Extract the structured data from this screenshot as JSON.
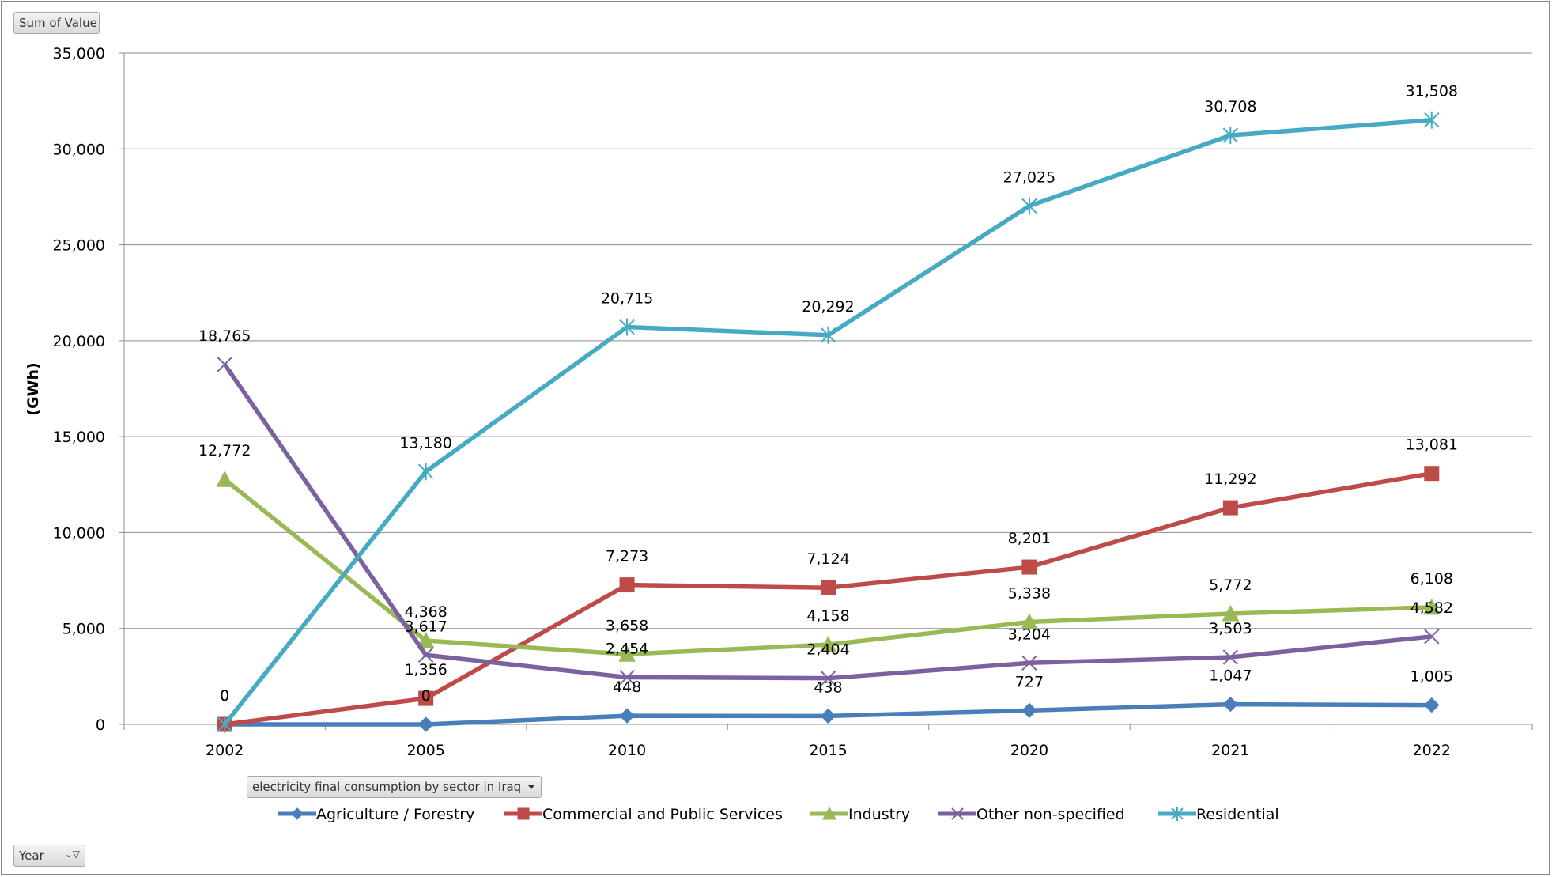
{
  "pivot": {
    "value_field": "Sum of Value",
    "filter_field": "electricity final consumption by sector in Iraq",
    "axis_field": "Year"
  },
  "chart_data": {
    "type": "line",
    "title": "",
    "xlabel": "",
    "ylabel": "(GWh)",
    "ylim": [
      0,
      35000
    ],
    "yticks": [
      0,
      5000,
      10000,
      15000,
      20000,
      25000,
      30000,
      35000
    ],
    "ytick_labels": [
      "0",
      "5,000",
      "10,000",
      "15,000",
      "20,000",
      "25,000",
      "30,000",
      "35,000"
    ],
    "categories": [
      "2002",
      "2005",
      "2010",
      "2015",
      "2020",
      "2021",
      "2022"
    ],
    "grid": true,
    "legend_position": "bottom",
    "series": [
      {
        "name": "Agriculture / Forestry",
        "color": "#4a7ebb",
        "marker": "diamond",
        "values": [
          0,
          0,
          448,
          438,
          727,
          1047,
          1005
        ],
        "labels": [
          "0",
          "0",
          "448",
          "438",
          "727",
          "1,047",
          "1,005"
        ]
      },
      {
        "name": "Commercial and Public Services",
        "color": "#be4b48",
        "marker": "square",
        "values": [
          0,
          1356,
          7273,
          7124,
          8201,
          11292,
          13081
        ],
        "labels": [
          "0",
          "1,356",
          "7,273",
          "7,124",
          "8,201",
          "11,292",
          "13,081"
        ]
      },
      {
        "name": "Industry",
        "color": "#98b954",
        "marker": "triangle",
        "values": [
          12772,
          4368,
          3658,
          4158,
          5338,
          5772,
          6108
        ],
        "labels": [
          "12,772",
          "4,368",
          "3,658",
          "4,158",
          "5,338",
          "5,772",
          "6,108"
        ]
      },
      {
        "name": "Other non-specified",
        "color": "#7d60a0",
        "marker": "x",
        "values": [
          18765,
          3617,
          2454,
          2404,
          3204,
          3503,
          4582
        ],
        "labels": [
          "18,765",
          "3,617",
          "2,454",
          "2,404",
          "3,204",
          "3,503",
          "4,582"
        ]
      },
      {
        "name": "Residential",
        "color": "#46aac5",
        "marker": "star",
        "values": [
          0,
          13180,
          20715,
          20292,
          27025,
          30708,
          31508
        ],
        "labels": [
          "",
          "13,180",
          "20,715",
          "20,292",
          "27,025",
          "30,708",
          "31,508"
        ]
      }
    ]
  }
}
